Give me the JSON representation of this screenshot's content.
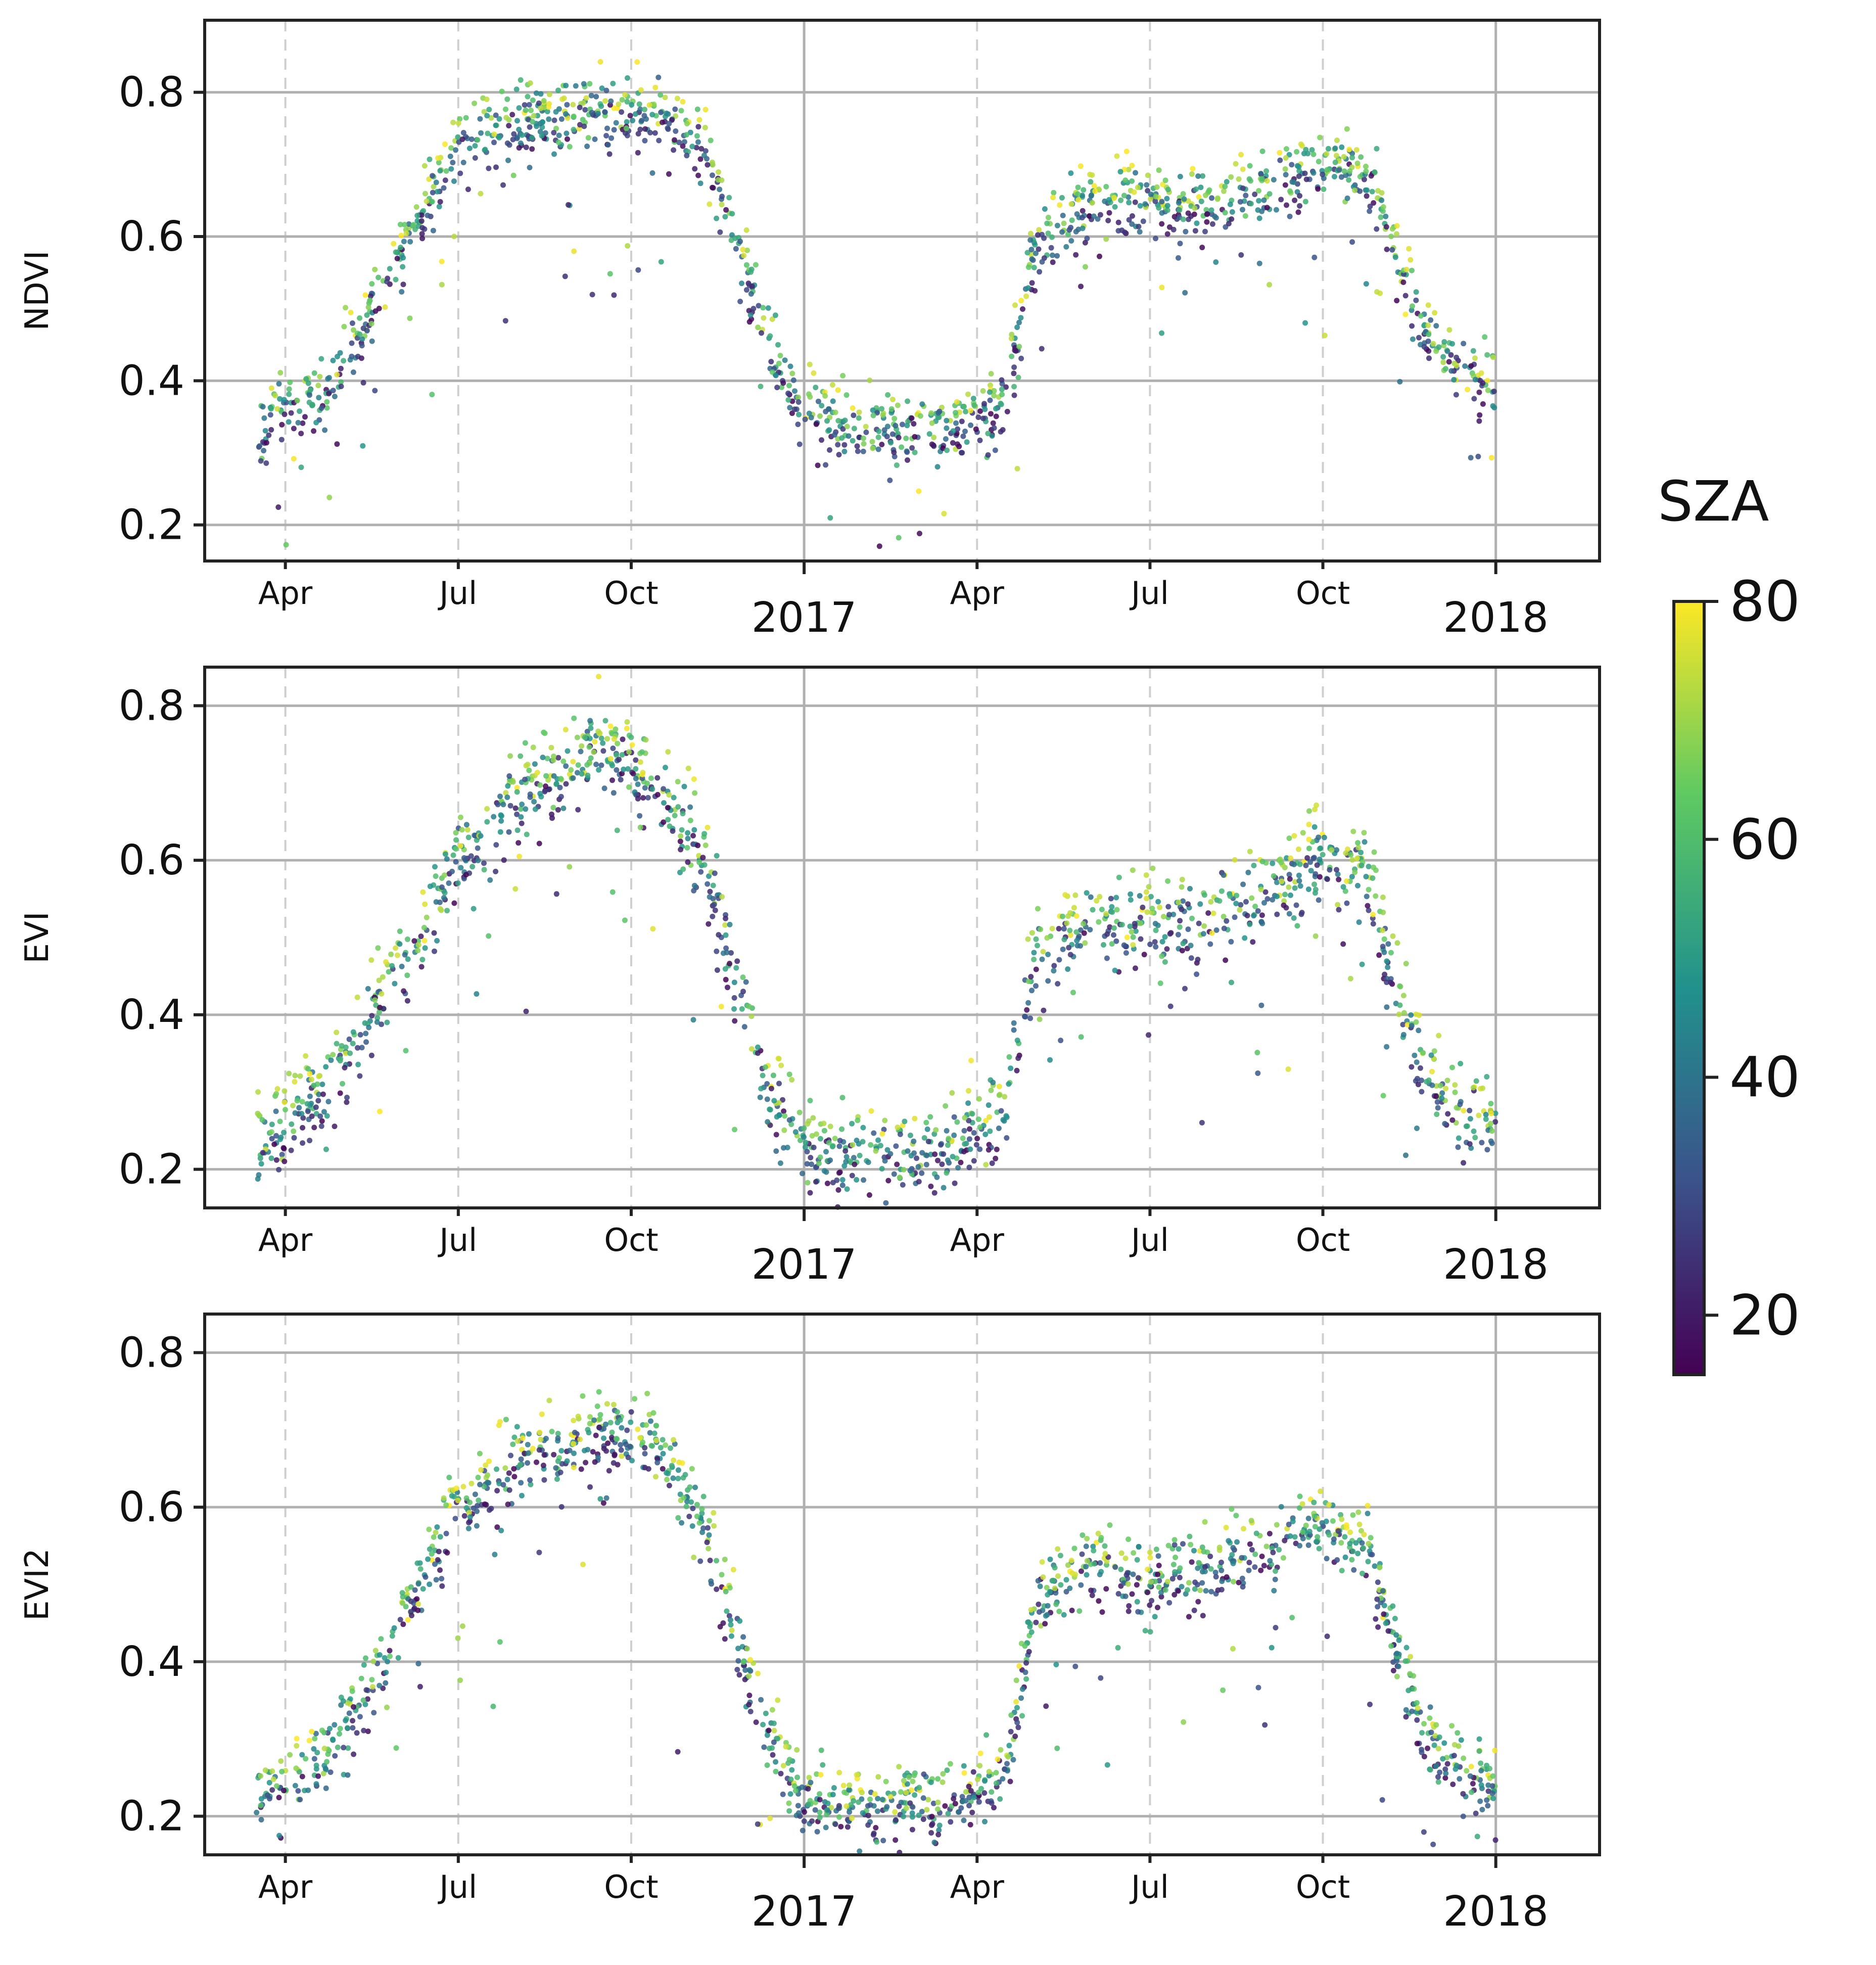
{
  "chart_data": {
    "type": "scatter",
    "colorbar": {
      "title": "SZA",
      "range": [
        15,
        80
      ],
      "ticks": [
        20,
        40,
        60,
        80
      ],
      "colormap": [
        "#440154",
        "#3b528b",
        "#21918c",
        "#5ec962",
        "#fde725"
      ]
    },
    "x_axis": {
      "range_months": [
        -10.4,
        13.8
      ],
      "month_ticks": [
        {
          "label": "Apr",
          "pos": -9
        },
        {
          "label": "Jul",
          "pos": -6
        },
        {
          "label": "Oct",
          "pos": -3
        },
        {
          "label": "Apr",
          "pos": 3
        },
        {
          "label": "Jul",
          "pos": 6
        },
        {
          "label": "Oct",
          "pos": 9
        }
      ],
      "year_ticks": [
        {
          "label": "2017",
          "pos": 0
        },
        {
          "label": "2018",
          "pos": 12
        }
      ]
    },
    "panels": [
      {
        "ylabel": "NDVI",
        "ylim": [
          0.15,
          0.9
        ],
        "yticks": [
          0.2,
          0.4,
          0.6,
          0.8
        ],
        "ytick_labels": [
          "0.2",
          "0.4",
          "0.6",
          "0.8"
        ],
        "series_points_months": [
          -9.5,
          -9.0,
          -8.3,
          -7.5,
          -6.7,
          -6.0,
          -5.0,
          -3.5,
          -2.5,
          -1.7,
          -1.2,
          -0.6,
          0.0,
          1.0,
          2.5,
          3.5,
          4.0,
          5.0,
          6.0,
          7.0,
          8.0,
          9.0,
          9.8,
          10.4,
          10.8,
          11.5,
          12.0
        ],
        "series_points_values": [
          0.32,
          0.36,
          0.38,
          0.5,
          0.62,
          0.73,
          0.76,
          0.77,
          0.77,
          0.73,
          0.6,
          0.45,
          0.36,
          0.33,
          0.33,
          0.38,
          0.58,
          0.65,
          0.65,
          0.64,
          0.67,
          0.69,
          0.69,
          0.55,
          0.47,
          0.41,
          0.4
        ],
        "spread": 0.035
      },
      {
        "ylabel": "EVI",
        "ylim": [
          0.15,
          0.85
        ],
        "yticks": [
          0.2,
          0.4,
          0.6,
          0.8
        ],
        "ytick_labels": [
          "0.2",
          "0.4",
          "0.6",
          "0.8"
        ],
        "series_points_months": [
          -9.5,
          -9.0,
          -8.3,
          -7.5,
          -6.7,
          -6.0,
          -5.0,
          -3.5,
          -2.5,
          -1.7,
          -1.2,
          -0.6,
          0.0,
          1.0,
          2.5,
          3.5,
          4.0,
          5.0,
          6.0,
          7.0,
          8.0,
          9.0,
          9.8,
          10.4,
          10.8,
          11.5,
          12.0
        ],
        "series_points_values": [
          0.24,
          0.27,
          0.3,
          0.4,
          0.5,
          0.6,
          0.68,
          0.75,
          0.69,
          0.6,
          0.45,
          0.3,
          0.23,
          0.22,
          0.23,
          0.28,
          0.48,
          0.52,
          0.52,
          0.53,
          0.56,
          0.6,
          0.57,
          0.4,
          0.32,
          0.27,
          0.25
        ],
        "spread": 0.04
      },
      {
        "ylabel": "EVI2",
        "ylim": [
          0.15,
          0.85
        ],
        "yticks": [
          0.2,
          0.4,
          0.6,
          0.8
        ],
        "ytick_labels": [
          "0.2",
          "0.4",
          "0.6",
          "0.8"
        ],
        "series_points_months": [
          -9.5,
          -9.0,
          -8.3,
          -7.5,
          -6.7,
          -6.0,
          -5.0,
          -3.5,
          -2.5,
          -1.7,
          -1.2,
          -0.6,
          0.0,
          1.0,
          2.5,
          3.5,
          4.0,
          5.0,
          6.0,
          7.0,
          8.0,
          9.0,
          9.8,
          10.4,
          10.8,
          11.5,
          12.0
        ],
        "series_points_values": [
          0.22,
          0.25,
          0.28,
          0.38,
          0.5,
          0.6,
          0.66,
          0.7,
          0.67,
          0.58,
          0.44,
          0.3,
          0.22,
          0.21,
          0.22,
          0.26,
          0.48,
          0.52,
          0.51,
          0.52,
          0.55,
          0.58,
          0.54,
          0.38,
          0.3,
          0.25,
          0.24
        ],
        "spread": 0.035
      }
    ]
  }
}
